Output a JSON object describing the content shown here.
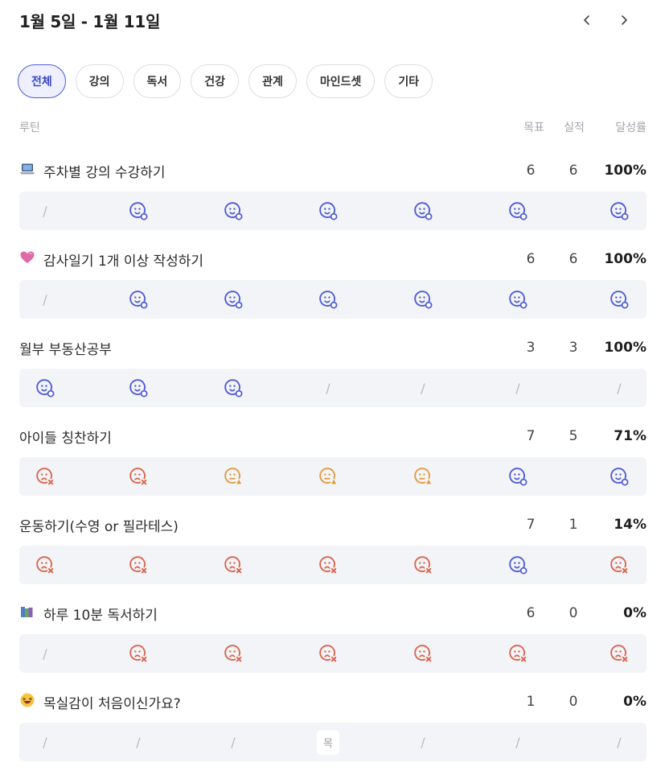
{
  "header": {
    "title": "1월 5일 - 1월 11일"
  },
  "filters": [
    "전체",
    "강의",
    "독서",
    "건강",
    "관계",
    "마인드셋",
    "기타"
  ],
  "active_filter": 0,
  "columns": {
    "routine": "루틴",
    "goal": "목표",
    "done": "실적",
    "rate": "달성률"
  },
  "colors": {
    "success": "#4d5bd6",
    "fail": "#d9644e",
    "partial": "#e29a3e",
    "empty": "#b8bac0",
    "accent": "#3b47c4"
  },
  "routines": [
    {
      "icon": "laptop-emoji",
      "name": "주차별 강의 수강하기",
      "goal": "6",
      "done": "6",
      "rate": "100%",
      "days": [
        "none",
        "success",
        "success",
        "success",
        "success",
        "success",
        "success"
      ]
    },
    {
      "icon": "heart-emoji",
      "name": "감사일기 1개 이상 작성하기",
      "goal": "6",
      "done": "6",
      "rate": "100%",
      "days": [
        "none",
        "success",
        "success",
        "success",
        "success",
        "success",
        "success"
      ]
    },
    {
      "icon": "",
      "name": "월부 부동산공부",
      "goal": "3",
      "done": "3",
      "rate": "100%",
      "days": [
        "success",
        "success",
        "success",
        "none",
        "none",
        "none",
        "none"
      ]
    },
    {
      "icon": "",
      "name": "아이들 칭찬하기",
      "goal": "7",
      "done": "5",
      "rate": "71%",
      "days": [
        "fail",
        "fail",
        "partial",
        "partial",
        "partial",
        "success",
        "success"
      ]
    },
    {
      "icon": "",
      "name": "운동하기(수영 or 필라테스)",
      "goal": "7",
      "done": "1",
      "rate": "14%",
      "days": [
        "fail",
        "fail",
        "fail",
        "fail",
        "fail",
        "success",
        "fail"
      ]
    },
    {
      "icon": "books-emoji",
      "name": "하루 10분 독서하기",
      "goal": "6",
      "done": "0",
      "rate": "0%",
      "days": [
        "none",
        "fail",
        "fail",
        "fail",
        "fail",
        "fail",
        "fail"
      ]
    },
    {
      "icon": "laughing-emoji",
      "name": "목실감이 처음이신가요?",
      "goal": "1",
      "done": "0",
      "rate": "0%",
      "days": [
        "none",
        "none",
        "none",
        "label",
        "none",
        "none",
        "none"
      ],
      "day_label": "목"
    }
  ]
}
